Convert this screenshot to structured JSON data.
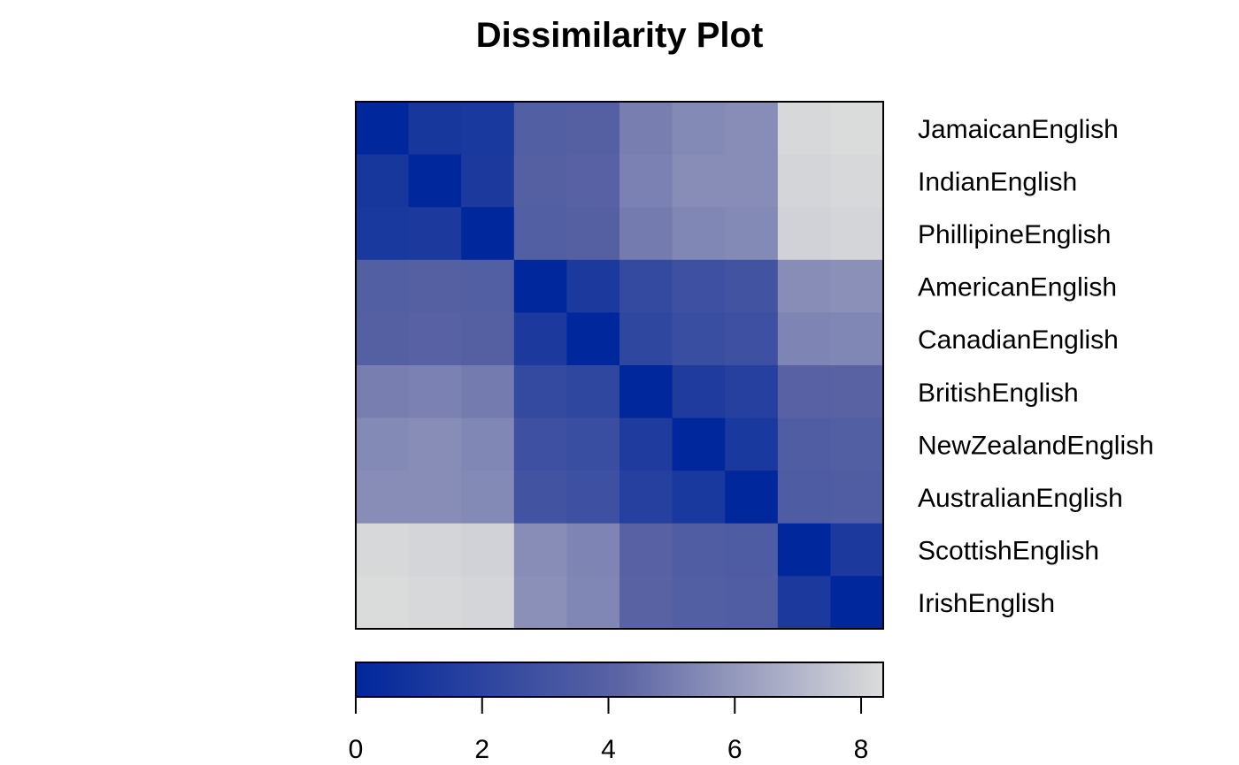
{
  "chart_data": {
    "type": "heatmap",
    "title": "Dissimilarity Plot",
    "labels": [
      "JamaicanEnglish",
      "IndianEnglish",
      "PhillipineEnglish",
      "AmericanEnglish",
      "CanadianEnglish",
      "BritishEnglish",
      "NewZealandEnglish",
      "AustralianEnglish",
      "ScottishEnglish",
      "IrishEnglish"
    ],
    "matrix": [
      [
        0.0,
        1.1,
        1.2,
        3.8,
        3.9,
        5.1,
        5.5,
        5.6,
        8.2,
        8.3
      ],
      [
        1.1,
        0.0,
        1.3,
        3.9,
        4.0,
        5.2,
        5.6,
        5.6,
        8.1,
        8.2
      ],
      [
        1.2,
        1.3,
        0.0,
        3.8,
        3.9,
        5.0,
        5.4,
        5.5,
        8.0,
        8.1
      ],
      [
        3.8,
        3.9,
        3.8,
        0.0,
        1.3,
        2.4,
        2.8,
        3.0,
        5.6,
        5.7
      ],
      [
        3.9,
        4.0,
        3.9,
        1.3,
        0.0,
        2.2,
        2.6,
        2.8,
        5.3,
        5.4
      ],
      [
        5.1,
        5.2,
        5.0,
        2.4,
        2.2,
        0.0,
        1.4,
        1.7,
        4.0,
        4.1
      ],
      [
        5.5,
        5.6,
        5.4,
        2.8,
        2.6,
        1.4,
        0.0,
        1.2,
        3.7,
        3.8
      ],
      [
        5.6,
        5.6,
        5.5,
        3.0,
        2.8,
        1.7,
        1.2,
        0.0,
        3.6,
        3.7
      ],
      [
        8.2,
        8.1,
        8.0,
        5.6,
        5.3,
        4.0,
        3.7,
        3.6,
        0.0,
        1.3
      ],
      [
        8.3,
        8.2,
        8.1,
        5.7,
        5.4,
        4.1,
        3.8,
        3.7,
        1.3,
        0.0
      ]
    ],
    "color_scale": {
      "min": 0,
      "max": 8.35,
      "low_color": "#00279b",
      "mid_color": "#5b64a4",
      "high_color": "#dcdcdc",
      "ticks": [
        0,
        2,
        4,
        6,
        8
      ],
      "tick_labels": [
        "0",
        "2",
        "4",
        "6",
        "8"
      ]
    },
    "legend_position": "bottom"
  }
}
